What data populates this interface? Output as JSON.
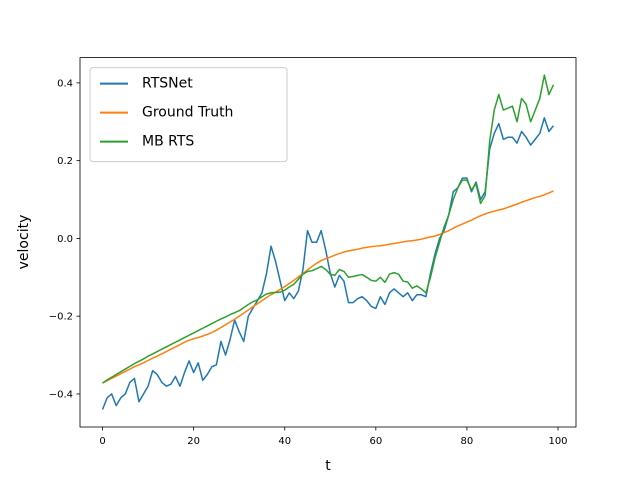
{
  "chart_data": {
    "type": "line",
    "xlabel": "t",
    "ylabel": "velocity",
    "x": [
      0,
      1,
      2,
      3,
      4,
      5,
      6,
      7,
      8,
      9,
      10,
      11,
      12,
      13,
      14,
      15,
      16,
      17,
      18,
      19,
      20,
      21,
      22,
      23,
      24,
      25,
      26,
      27,
      28,
      29,
      30,
      31,
      32,
      33,
      34,
      35,
      36,
      37,
      38,
      39,
      40,
      41,
      42,
      43,
      44,
      45,
      46,
      47,
      48,
      49,
      50,
      51,
      52,
      53,
      54,
      55,
      56,
      57,
      58,
      59,
      60,
      61,
      62,
      63,
      64,
      65,
      66,
      67,
      68,
      69,
      70,
      71,
      72,
      73,
      74,
      75,
      76,
      77,
      78,
      79,
      80,
      81,
      82,
      83,
      84,
      85,
      86,
      87,
      88,
      89,
      90,
      91,
      92,
      93,
      94,
      95,
      96,
      97,
      98,
      99
    ],
    "series": [
      {
        "name": "RTSNet",
        "color": "#1f77b4",
        "values": [
          -0.44,
          -0.41,
          -0.4,
          -0.43,
          -0.41,
          -0.4,
          -0.37,
          -0.36,
          -0.42,
          -0.4,
          -0.38,
          -0.34,
          -0.35,
          -0.37,
          -0.38,
          -0.375,
          -0.355,
          -0.38,
          -0.345,
          -0.315,
          -0.345,
          -0.32,
          -0.365,
          -0.35,
          -0.33,
          -0.325,
          -0.265,
          -0.3,
          -0.26,
          -0.21,
          -0.24,
          -0.265,
          -0.2,
          -0.18,
          -0.16,
          -0.14,
          -0.09,
          -0.02,
          -0.06,
          -0.11,
          -0.16,
          -0.14,
          -0.155,
          -0.135,
          -0.08,
          0.02,
          -0.01,
          -0.01,
          0.02,
          -0.03,
          -0.09,
          -0.125,
          -0.095,
          -0.11,
          -0.165,
          -0.165,
          -0.155,
          -0.15,
          -0.16,
          -0.175,
          -0.18,
          -0.15,
          -0.17,
          -0.14,
          -0.13,
          -0.14,
          -0.15,
          -0.14,
          -0.16,
          -0.145,
          -0.145,
          -0.15,
          -0.09,
          -0.04,
          0.0,
          0.02,
          0.06,
          0.12,
          0.13,
          0.155,
          0.155,
          0.12,
          0.145,
          0.1,
          0.12,
          0.23,
          0.27,
          0.295,
          0.255,
          0.26,
          0.26,
          0.245,
          0.275,
          0.26,
          0.24,
          0.255,
          0.27,
          0.31,
          0.275,
          0.29
        ]
      },
      {
        "name": "Ground Truth",
        "color": "#ff7f0e",
        "values": [
          -0.372,
          -0.366,
          -0.36,
          -0.354,
          -0.348,
          -0.342,
          -0.336,
          -0.33,
          -0.325,
          -0.32,
          -0.314,
          -0.308,
          -0.303,
          -0.297,
          -0.291,
          -0.285,
          -0.279,
          -0.273,
          -0.267,
          -0.262,
          -0.258,
          -0.255,
          -0.251,
          -0.247,
          -0.242,
          -0.236,
          -0.229,
          -0.222,
          -0.215,
          -0.208,
          -0.2,
          -0.192,
          -0.184,
          -0.176,
          -0.168,
          -0.16,
          -0.152,
          -0.145,
          -0.138,
          -0.131,
          -0.124,
          -0.116,
          -0.108,
          -0.099,
          -0.09,
          -0.081,
          -0.072,
          -0.064,
          -0.057,
          -0.052,
          -0.048,
          -0.043,
          -0.039,
          -0.035,
          -0.032,
          -0.03,
          -0.028,
          -0.025,
          -0.023,
          -0.021,
          -0.02,
          -0.019,
          -0.017,
          -0.015,
          -0.013,
          -0.011,
          -0.009,
          -0.007,
          -0.006,
          -0.004,
          -0.002,
          0.001,
          0.004,
          0.006,
          0.01,
          0.015,
          0.02,
          0.026,
          0.032,
          0.037,
          0.042,
          0.047,
          0.053,
          0.058,
          0.063,
          0.067,
          0.07,
          0.073,
          0.076,
          0.08,
          0.084,
          0.088,
          0.093,
          0.097,
          0.101,
          0.105,
          0.108,
          0.112,
          0.117,
          0.122
        ]
      },
      {
        "name": "MB RTS",
        "color": "#2ca02c",
        "values": [
          -0.372,
          -0.364,
          -0.357,
          -0.35,
          -0.343,
          -0.336,
          -0.329,
          -0.322,
          -0.316,
          -0.31,
          -0.303,
          -0.297,
          -0.291,
          -0.285,
          -0.279,
          -0.273,
          -0.267,
          -0.261,
          -0.255,
          -0.249,
          -0.243,
          -0.237,
          -0.231,
          -0.225,
          -0.219,
          -0.213,
          -0.207,
          -0.202,
          -0.196,
          -0.191,
          -0.186,
          -0.178,
          -0.17,
          -0.163,
          -0.158,
          -0.15,
          -0.143,
          -0.14,
          -0.139,
          -0.138,
          -0.133,
          -0.125,
          -0.118,
          -0.105,
          -0.092,
          -0.085,
          -0.083,
          -0.078,
          -0.072,
          -0.08,
          -0.092,
          -0.095,
          -0.08,
          -0.085,
          -0.1,
          -0.098,
          -0.095,
          -0.093,
          -0.1,
          -0.108,
          -0.11,
          -0.1,
          -0.113,
          -0.092,
          -0.088,
          -0.092,
          -0.11,
          -0.112,
          -0.128,
          -0.122,
          -0.13,
          -0.14,
          -0.1,
          -0.05,
          -0.01,
          0.03,
          0.06,
          0.1,
          0.13,
          0.15,
          0.15,
          0.125,
          0.14,
          0.09,
          0.11,
          0.25,
          0.33,
          0.37,
          0.33,
          0.335,
          0.34,
          0.3,
          0.36,
          0.345,
          0.3,
          0.33,
          0.36,
          0.42,
          0.37,
          0.395
        ]
      }
    ],
    "xlim": [
      -4.95,
      103.95
    ],
    "ylim": [
      -0.485,
      0.465
    ],
    "xticks": [
      0,
      20,
      40,
      60,
      80,
      100
    ],
    "yticks": [
      {
        "value": -0.4,
        "label": "−0.4"
      },
      {
        "value": -0.2,
        "label": "−0.2"
      },
      {
        "value": 0.0,
        "label": "0.0"
      },
      {
        "value": 0.2,
        "label": "0.2"
      },
      {
        "value": 0.4,
        "label": "0.4"
      }
    ],
    "legend": "upper left"
  }
}
